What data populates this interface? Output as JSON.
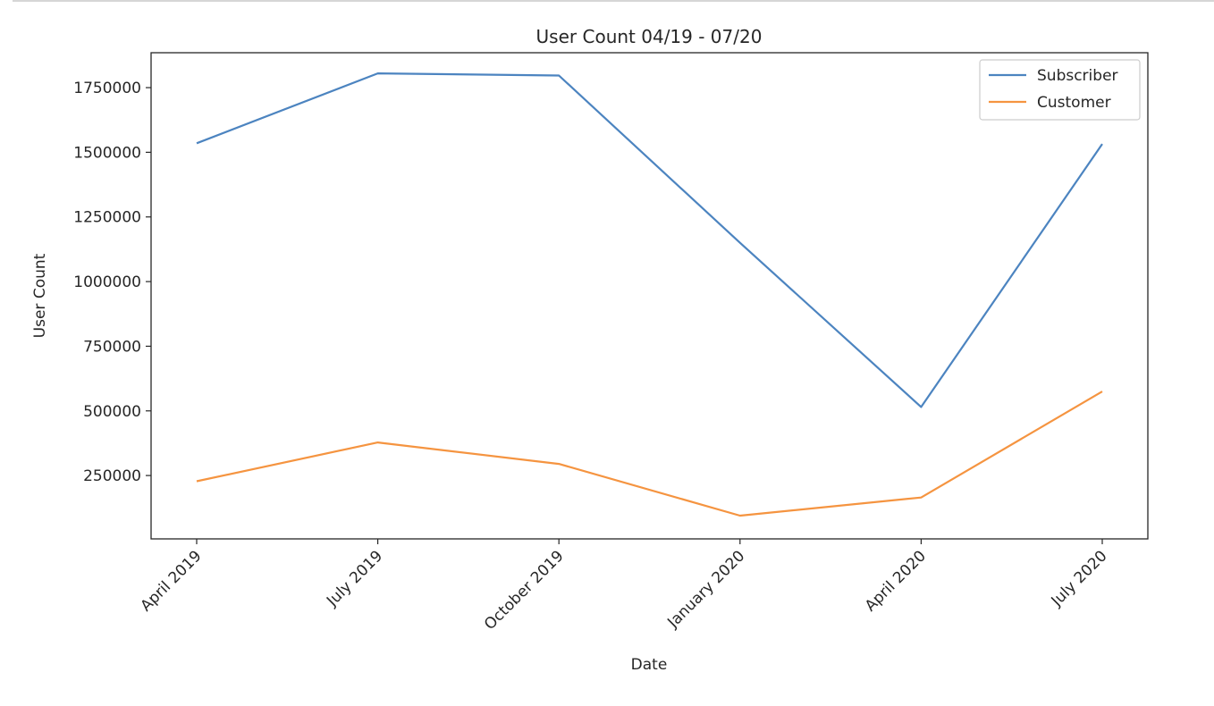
{
  "chart_data": {
    "type": "line",
    "title": "User Count 04/19 - 07/20",
    "xlabel": "Date",
    "ylabel": "User Count",
    "categories": [
      "April 2019",
      "July 2019",
      "October 2019",
      "January 2020",
      "April 2020",
      "July 2020"
    ],
    "series": [
      {
        "name": "Subscriber",
        "color": "#4c84c0",
        "values": [
          1535000,
          1805000,
          1797000,
          1150000,
          515000,
          1532000
        ]
      },
      {
        "name": "Customer",
        "color": "#f59440",
        "values": [
          228000,
          378000,
          295000,
          95000,
          165000,
          575000
        ]
      }
    ],
    "yticks": [
      250000,
      500000,
      750000,
      1000000,
      1250000,
      1500000,
      1750000
    ],
    "ylim": [
      5000,
      1885000
    ],
    "grid": false,
    "legend_position": "top-right"
  }
}
